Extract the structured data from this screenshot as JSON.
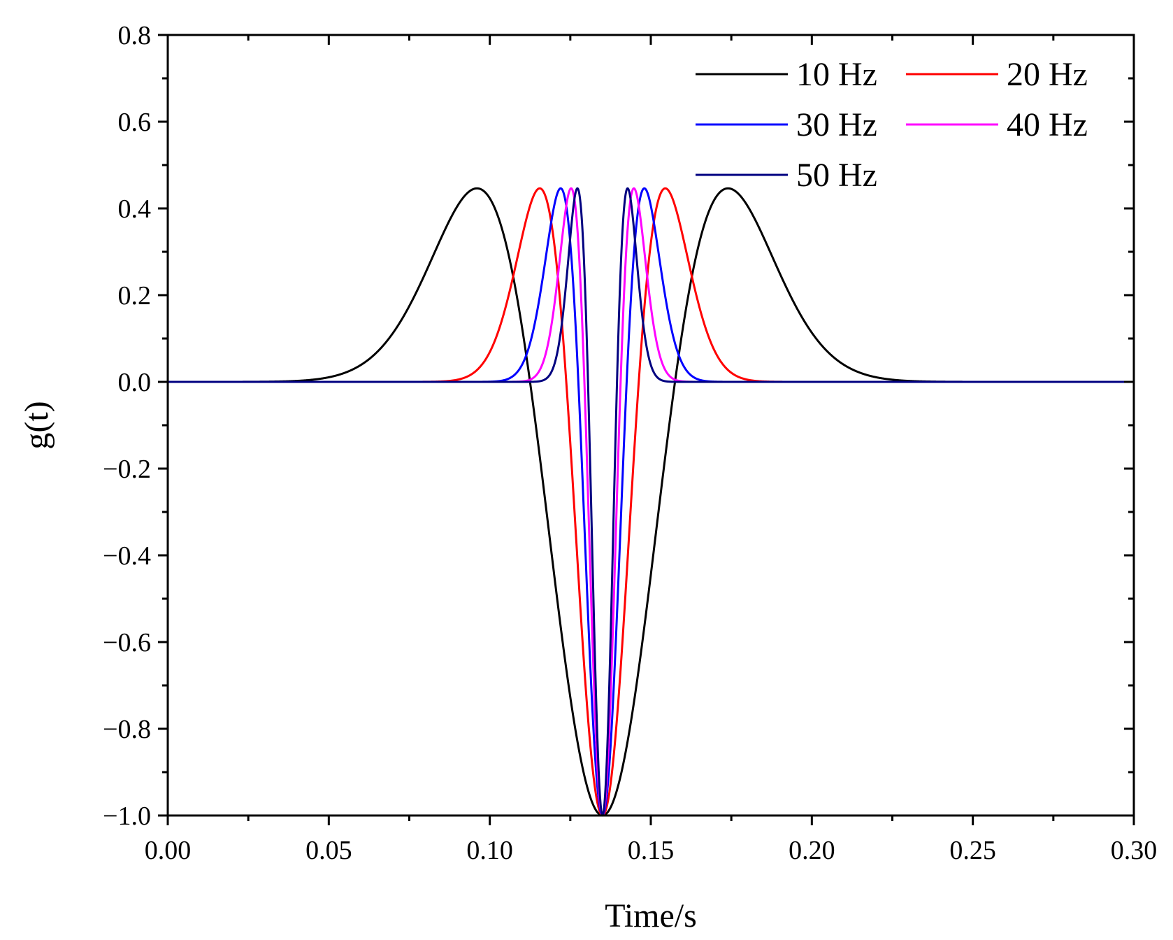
{
  "chart_data": {
    "type": "line",
    "title": "",
    "xlabel": "Time/s",
    "ylabel": "g(t)",
    "xlim": [
      0.0,
      0.3
    ],
    "ylim": [
      -1.0,
      0.8
    ],
    "x_ticks": [
      0.0,
      0.05,
      0.1,
      0.15,
      0.2,
      0.25,
      0.3
    ],
    "x_tick_labels": [
      "0.00",
      "0.05",
      "0.10",
      "0.15",
      "0.20",
      "0.25",
      "0.30"
    ],
    "y_ticks": [
      -1.0,
      -0.8,
      -0.6,
      -0.4,
      -0.2,
      0.0,
      0.2,
      0.4,
      0.6,
      0.8
    ],
    "y_tick_labels": [
      "−1.0",
      "−0.8",
      "−0.6",
      "−0.4",
      "−0.2",
      "0.0",
      "0.2",
      "0.4",
      "0.6",
      "0.8"
    ],
    "grid": false,
    "legend_position": "top-right",
    "function": "Ricker wavelet g(t) = -(1 - 2*pi^2*f^2*(t - t0)^2) * exp(-pi^2*f^2*(t - t0)^2), t0 = 0.135 s",
    "t0": 0.135,
    "series": [
      {
        "name": "10 Hz",
        "frequency": 10,
        "color": "#000000",
        "min": -1.0,
        "side_peaks": 0.446,
        "side_peak_times": [
          0.0962,
          0.1738
        ]
      },
      {
        "name": "20 Hz",
        "frequency": 20,
        "color": "#ff0000",
        "min": -1.0,
        "side_peaks": 0.446,
        "side_peak_times": [
          0.1156,
          0.1544
        ]
      },
      {
        "name": "30 Hz",
        "frequency": 30,
        "color": "#0000ff",
        "min": -1.0,
        "side_peaks": 0.446,
        "side_peak_times": [
          0.1221,
          0.1479
        ]
      },
      {
        "name": "40 Hz",
        "frequency": 40,
        "color": "#ff00ff",
        "min": -1.0,
        "side_peaks": 0.446,
        "side_peak_times": [
          0.1253,
          0.1447
        ]
      },
      {
        "name": "50 Hz",
        "frequency": 50,
        "color": "#000080",
        "min": -1.0,
        "side_peaks": 0.446,
        "side_peak_times": [
          0.1272,
          0.1428
        ]
      }
    ]
  }
}
